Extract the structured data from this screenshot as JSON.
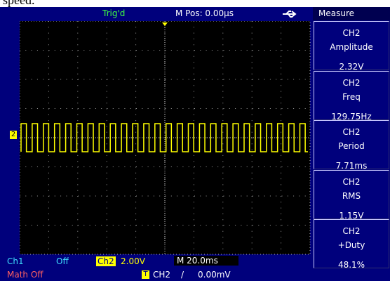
{
  "caption_fragment": "speed.",
  "header": {
    "status": "Trig'd",
    "position": "M Pos: 0.00µs",
    "menu_title": "Measure"
  },
  "channel_marker": "2",
  "measurements": [
    {
      "channel": "CH2",
      "label": "Amplitude",
      "value": "2.32V"
    },
    {
      "channel": "CH2",
      "label": "Freq",
      "value": "129.75Hz"
    },
    {
      "channel": "CH2",
      "label": "Period",
      "value": "7.71ms"
    },
    {
      "channel": "CH2",
      "label": "RMS",
      "value": "1.15V"
    },
    {
      "channel": "CH2",
      "label": "+Duty",
      "value": "48.1%"
    }
  ],
  "footer": {
    "ch1_label": "Ch1",
    "ch1_state": "Off",
    "ch2_label": "Ch2",
    "ch2_scale": "2.00V",
    "timebase": "M 20.0ms",
    "math": "Math Off",
    "trigger_icon": "T",
    "trigger_source": "CH2",
    "trigger_slope": "/",
    "trigger_level": "0.00mV"
  }
}
